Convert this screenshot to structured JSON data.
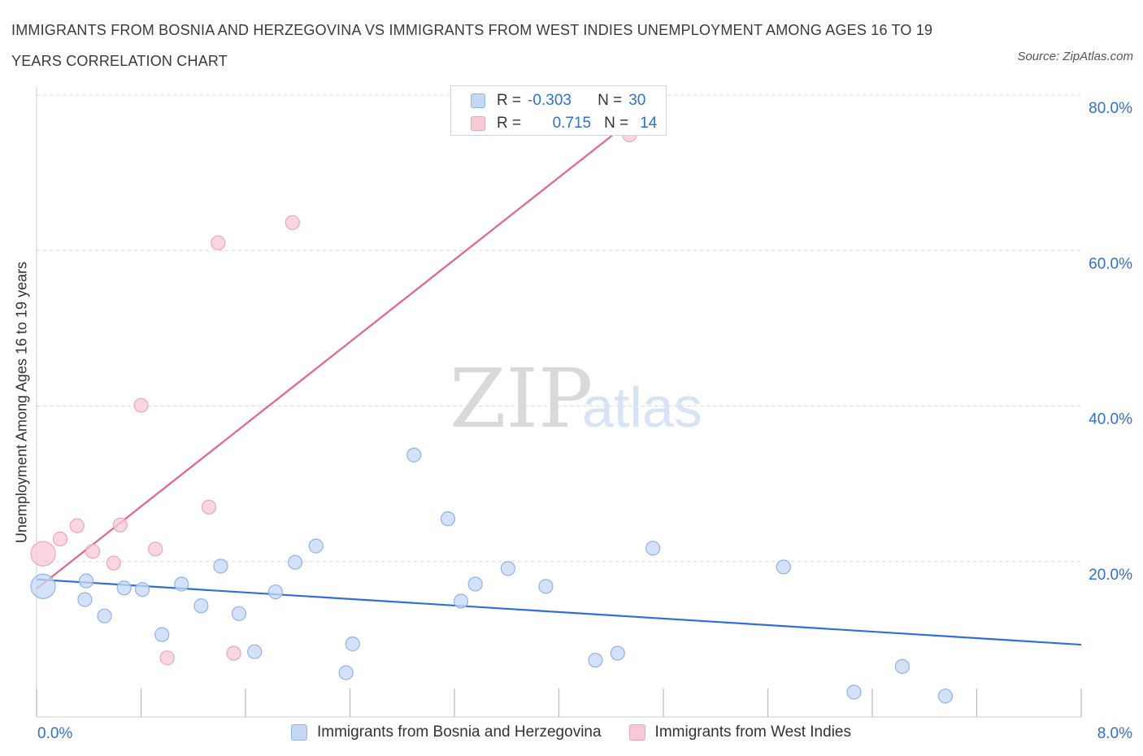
{
  "title": "IMMIGRANTS FROM BOSNIA AND HERZEGOVINA VS IMMIGRANTS FROM WEST INDIES UNEMPLOYMENT AMONG AGES 16 TO 19 YEARS CORRELATION CHART",
  "source": "Source: ZipAtlas.com",
  "watermark": {
    "zip": "ZIP",
    "atlas": "atlas"
  },
  "legend_top": [
    {
      "r_label": "R =",
      "r_value": "-0.303",
      "n_label": "N =",
      "n_value": "30"
    },
    {
      "r_label": "R =",
      "r_value": "0.715",
      "n_label": "N =",
      "n_value": "14"
    }
  ],
  "colors": {
    "blue_fill": "#c4d8f5",
    "blue_stroke": "#8fb3e8",
    "blue_line": "#2f6fd6",
    "pink_fill": "#f8cad6",
    "pink_stroke": "#eca5b8",
    "pink_line": "#e5628c",
    "tick_text": "#2f6fd6",
    "grid": "#d9d9d9"
  },
  "chart_data": {
    "type": "scatter",
    "xlabel": "",
    "ylabel": "Unemployment Among Ages 16 to 19 years",
    "xlim": [
      0,
      8
    ],
    "ylim": [
      0,
      80
    ],
    "x_tick_labels": [
      "0.0%",
      "8.0%"
    ],
    "y_ticks": [
      20,
      40,
      60,
      80
    ],
    "y_tick_labels": [
      "20.0%",
      "40.0%",
      "60.0%",
      "80.0%"
    ],
    "grid": true,
    "legend_position": "bottom",
    "series": [
      {
        "name": "Immigrants from Bosnia and Herzegovina",
        "color": "blue",
        "points": [
          {
            "x": 0.05,
            "y": 16.8,
            "big": true
          },
          {
            "x": 0.38,
            "y": 17.5
          },
          {
            "x": 0.37,
            "y": 15.1
          },
          {
            "x": 0.52,
            "y": 13.0
          },
          {
            "x": 0.67,
            "y": 16.6
          },
          {
            "x": 0.81,
            "y": 16.4
          },
          {
            "x": 0.96,
            "y": 10.6
          },
          {
            "x": 1.11,
            "y": 17.1
          },
          {
            "x": 1.26,
            "y": 14.3
          },
          {
            "x": 1.41,
            "y": 19.4
          },
          {
            "x": 1.55,
            "y": 13.3
          },
          {
            "x": 1.67,
            "y": 8.4
          },
          {
            "x": 1.83,
            "y": 16.1
          },
          {
            "x": 1.98,
            "y": 19.9
          },
          {
            "x": 2.14,
            "y": 22.0
          },
          {
            "x": 2.37,
            "y": 5.7
          },
          {
            "x": 2.42,
            "y": 9.4
          },
          {
            "x": 2.89,
            "y": 33.7
          },
          {
            "x": 3.15,
            "y": 25.5
          },
          {
            "x": 3.25,
            "y": 14.9
          },
          {
            "x": 3.36,
            "y": 17.1
          },
          {
            "x": 3.61,
            "y": 19.1
          },
          {
            "x": 3.9,
            "y": 16.8
          },
          {
            "x": 4.28,
            "y": 7.3
          },
          {
            "x": 4.45,
            "y": 8.2
          },
          {
            "x": 4.72,
            "y": 21.7
          },
          {
            "x": 5.72,
            "y": 19.3
          },
          {
            "x": 6.26,
            "y": 3.2
          },
          {
            "x": 6.63,
            "y": 6.5
          },
          {
            "x": 6.96,
            "y": 2.7
          }
        ],
        "trend": {
          "x1": 0.0,
          "y1": 17.7,
          "x2": 8.0,
          "y2": 9.3
        }
      },
      {
        "name": "Immigrants from West Indies",
        "color": "pink",
        "points": [
          {
            "x": 0.05,
            "y": 21.0,
            "big": true
          },
          {
            "x": 0.18,
            "y": 22.9
          },
          {
            "x": 0.31,
            "y": 24.6
          },
          {
            "x": 0.43,
            "y": 21.3
          },
          {
            "x": 0.59,
            "y": 19.8
          },
          {
            "x": 0.64,
            "y": 24.7
          },
          {
            "x": 0.8,
            "y": 40.1
          },
          {
            "x": 0.91,
            "y": 21.6
          },
          {
            "x": 1.0,
            "y": 7.6
          },
          {
            "x": 1.32,
            "y": 27.0
          },
          {
            "x": 1.39,
            "y": 61.0
          },
          {
            "x": 1.51,
            "y": 8.2
          },
          {
            "x": 1.96,
            "y": 63.6
          },
          {
            "x": 4.54,
            "y": 74.9
          }
        ],
        "trend": {
          "x1": 0.0,
          "y1": 16.5,
          "x2": 4.8,
          "y2": 80.0
        }
      }
    ]
  }
}
